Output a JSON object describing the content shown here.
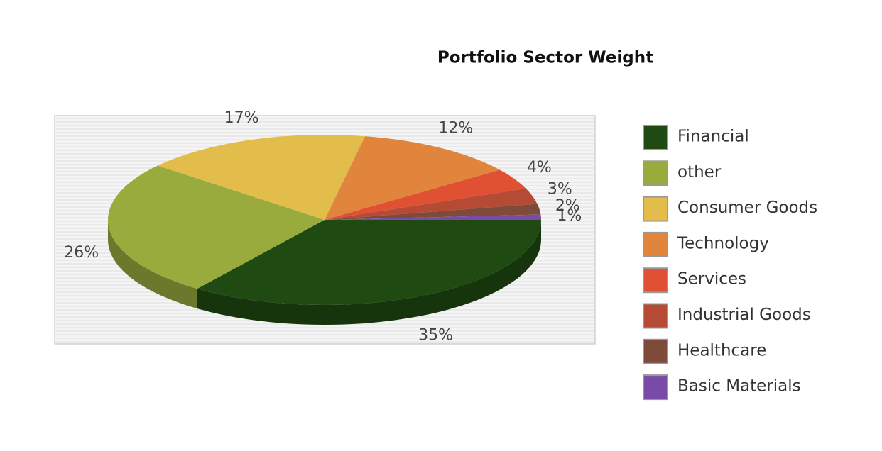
{
  "chart_data": {
    "type": "pie",
    "title": "Portfolio Sector Weight",
    "categories": [
      "Financial",
      "other",
      "Consumer Goods",
      "Technology",
      "Services",
      "Industrial Goods",
      "Healthcare",
      "Basic Materials"
    ],
    "values": [
      35,
      26,
      17,
      12,
      4,
      3,
      2,
      1
    ],
    "value_labels": [
      "35%",
      "26%",
      "17%",
      "12%",
      "4%",
      "3%",
      "2%",
      "1%"
    ],
    "colors": [
      "#1f4b12",
      "#9aab3d",
      "#e2bd4b",
      "#e0853b",
      "#e05032",
      "#b54b35",
      "#7e4b3b",
      "#7a4ba6"
    ],
    "legend": "right"
  }
}
